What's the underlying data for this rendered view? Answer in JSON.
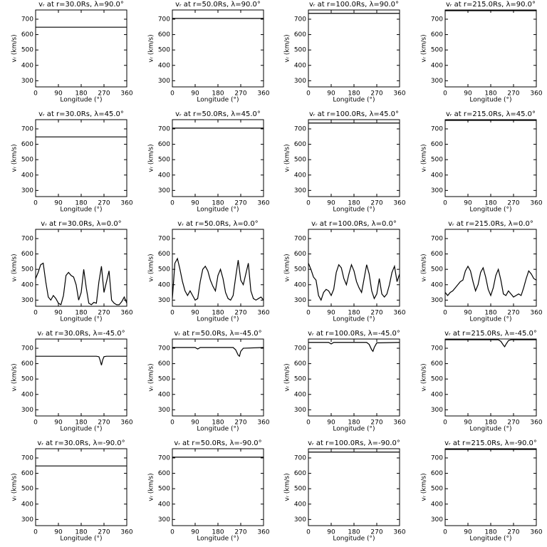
{
  "chart_data": [
    {
      "type": "line",
      "title": "vᵣ at r=30.0Rs, λ=90.0°",
      "xlabel": "Longitude (°)",
      "ylabel": "vᵣ (km/s)",
      "xlim": [
        0,
        360
      ],
      "ylim": [
        260,
        760
      ],
      "xticks": [
        0,
        90,
        180,
        270,
        360
      ],
      "yticks": [
        300,
        400,
        500,
        600,
        700
      ],
      "color": "#000000",
      "x": [
        0,
        360
      ],
      "values": [
        648,
        648
      ]
    },
    {
      "type": "line",
      "title": "vᵣ at r=50.0Rs, λ=90.0°",
      "xlabel": "Longitude (°)",
      "ylabel": "vᵣ (km/s)",
      "xlim": [
        0,
        360
      ],
      "ylim": [
        260,
        760
      ],
      "xticks": [
        0,
        90,
        180,
        270,
        360
      ],
      "yticks": [
        300,
        400,
        500,
        600,
        700
      ],
      "color": "#000000",
      "x": [
        0,
        360
      ],
      "values": [
        705,
        705
      ]
    },
    {
      "type": "line",
      "title": "vᵣ at r=100.0Rs, λ=90.0°",
      "xlabel": "Longitude (°)",
      "ylabel": "vᵣ (km/s)",
      "xlim": [
        0,
        360
      ],
      "ylim": [
        260,
        760
      ],
      "xticks": [
        0,
        90,
        180,
        270,
        360
      ],
      "yticks": [
        300,
        400,
        500,
        600,
        700
      ],
      "color": "#000000",
      "x": [
        0,
        360
      ],
      "values": [
        738,
        738
      ]
    },
    {
      "type": "line",
      "title": "vᵣ at r=215.0Rs, λ=90.0°",
      "xlabel": "Longitude (°)",
      "ylabel": "vᵣ (km/s)",
      "xlim": [
        0,
        360
      ],
      "ylim": [
        260,
        760
      ],
      "xticks": [
        0,
        90,
        180,
        270,
        360
      ],
      "yticks": [
        300,
        400,
        500,
        600,
        700
      ],
      "color": "#000000",
      "x": [
        0,
        360
      ],
      "values": [
        755,
        755
      ]
    },
    {
      "type": "line",
      "title": "vᵣ at r=30.0Rs, λ=45.0°",
      "xlabel": "Longitude (°)",
      "ylabel": "vᵣ (km/s)",
      "xlim": [
        0,
        360
      ],
      "ylim": [
        260,
        760
      ],
      "xticks": [
        0,
        90,
        180,
        270,
        360
      ],
      "yticks": [
        300,
        400,
        500,
        600,
        700
      ],
      "color": "#000000",
      "x": [
        0,
        360
      ],
      "values": [
        648,
        648
      ]
    },
    {
      "type": "line",
      "title": "vᵣ at r=50.0Rs, λ=45.0°",
      "xlabel": "Longitude (°)",
      "ylabel": "vᵣ (km/s)",
      "xlim": [
        0,
        360
      ],
      "ylim": [
        260,
        760
      ],
      "xticks": [
        0,
        90,
        180,
        270,
        360
      ],
      "yticks": [
        300,
        400,
        500,
        600,
        700
      ],
      "color": "#000000",
      "x": [
        0,
        360
      ],
      "values": [
        705,
        705
      ]
    },
    {
      "type": "line",
      "title": "vᵣ at r=100.0Rs, λ=45.0°",
      "xlabel": "Longitude (°)",
      "ylabel": "vᵣ (km/s)",
      "xlim": [
        0,
        360
      ],
      "ylim": [
        260,
        760
      ],
      "xticks": [
        0,
        90,
        180,
        270,
        360
      ],
      "yticks": [
        300,
        400,
        500,
        600,
        700
      ],
      "color": "#000000",
      "x": [
        0,
        360
      ],
      "values": [
        738,
        738
      ]
    },
    {
      "type": "line",
      "title": "vᵣ at r=215.0Rs, λ=45.0°",
      "xlabel": "Longitude (°)",
      "ylabel": "vᵣ (km/s)",
      "xlim": [
        0,
        360
      ],
      "ylim": [
        260,
        760
      ],
      "xticks": [
        0,
        90,
        180,
        270,
        360
      ],
      "yticks": [
        300,
        400,
        500,
        600,
        700
      ],
      "color": "#000000",
      "x": [
        0,
        360
      ],
      "values": [
        755,
        755
      ]
    },
    {
      "type": "line",
      "title": "vᵣ at r=30.0Rs, λ=0.0°",
      "xlabel": "Longitude (°)",
      "ylabel": "vᵣ (km/s)",
      "xlim": [
        0,
        360
      ],
      "ylim": [
        260,
        760
      ],
      "xticks": [
        0,
        90,
        180,
        270,
        360
      ],
      "yticks": [
        300,
        400,
        500,
        600,
        700
      ],
      "color": "#000000",
      "x": [
        0,
        10,
        20,
        30,
        40,
        50,
        60,
        70,
        80,
        90,
        100,
        110,
        120,
        130,
        140,
        150,
        160,
        170,
        180,
        190,
        200,
        210,
        220,
        230,
        240,
        250,
        260,
        270,
        280,
        290,
        300,
        310,
        320,
        330,
        340,
        350,
        360
      ],
      "values": [
        440,
        480,
        530,
        540,
        420,
        320,
        300,
        330,
        310,
        280,
        270,
        330,
        460,
        480,
        460,
        450,
        400,
        300,
        350,
        500,
        380,
        280,
        270,
        285,
        280,
        420,
        520,
        350,
        420,
        490,
        300,
        280,
        270,
        270,
        290,
        320,
        280
      ]
    },
    {
      "type": "line",
      "title": "vᵣ at r=50.0Rs, λ=0.0°",
      "xlabel": "Longitude (°)",
      "ylabel": "vᵣ (km/s)",
      "xlim": [
        0,
        360
      ],
      "ylim": [
        260,
        760
      ],
      "xticks": [
        0,
        90,
        180,
        270,
        360
      ],
      "yticks": [
        300,
        400,
        500,
        600,
        700
      ],
      "color": "#000000",
      "x": [
        0,
        10,
        20,
        30,
        40,
        50,
        60,
        70,
        80,
        90,
        100,
        110,
        120,
        130,
        140,
        150,
        160,
        170,
        180,
        190,
        200,
        210,
        220,
        230,
        240,
        250,
        260,
        270,
        280,
        290,
        300,
        310,
        320,
        330,
        340,
        350,
        360
      ],
      "values": [
        310,
        540,
        570,
        500,
        420,
        360,
        330,
        360,
        330,
        300,
        310,
        420,
        500,
        520,
        490,
        430,
        390,
        360,
        460,
        500,
        440,
        350,
        310,
        300,
        330,
        450,
        560,
        430,
        400,
        470,
        540,
        360,
        310,
        300,
        310,
        320,
        300
      ]
    },
    {
      "type": "line",
      "title": "vᵣ at r=100.0Rs, λ=0.0°",
      "xlabel": "Longitude (°)",
      "ylabel": "vᵣ (km/s)",
      "xlim": [
        0,
        360
      ],
      "ylim": [
        260,
        760
      ],
      "xticks": [
        0,
        90,
        180,
        270,
        360
      ],
      "yticks": [
        300,
        400,
        500,
        600,
        700
      ],
      "color": "#000000",
      "x": [
        0,
        10,
        20,
        30,
        40,
        50,
        60,
        70,
        80,
        90,
        100,
        110,
        120,
        130,
        140,
        150,
        160,
        170,
        180,
        190,
        200,
        210,
        220,
        230,
        240,
        250,
        260,
        270,
        280,
        290,
        300,
        310,
        320,
        330,
        340,
        350,
        360
      ],
      "values": [
        540,
        500,
        450,
        430,
        330,
        300,
        350,
        370,
        360,
        330,
        370,
        480,
        530,
        510,
        440,
        400,
        470,
        530,
        490,
        420,
        380,
        350,
        440,
        530,
        470,
        360,
        310,
        340,
        440,
        340,
        320,
        340,
        400,
        480,
        520,
        420,
        470
      ]
    },
    {
      "type": "line",
      "title": "vᵣ at r=215.0Rs, λ=0.0°",
      "xlabel": "Longitude (°)",
      "ylabel": "vᵣ (km/s)",
      "xlim": [
        0,
        360
      ],
      "ylim": [
        260,
        760
      ],
      "xticks": [
        0,
        90,
        180,
        270,
        360
      ],
      "yticks": [
        300,
        400,
        500,
        600,
        700
      ],
      "color": "#000000",
      "x": [
        0,
        10,
        20,
        30,
        40,
        50,
        60,
        70,
        80,
        90,
        100,
        110,
        120,
        130,
        140,
        150,
        160,
        170,
        180,
        190,
        200,
        210,
        220,
        230,
        240,
        250,
        260,
        270,
        280,
        290,
        300,
        310,
        320,
        330,
        340,
        350,
        360
      ],
      "values": [
        350,
        330,
        350,
        360,
        380,
        400,
        420,
        430,
        490,
        520,
        490,
        420,
        360,
        400,
        480,
        510,
        450,
        370,
        330,
        380,
        460,
        500,
        430,
        340,
        330,
        360,
        340,
        320,
        330,
        340,
        330,
        380,
        440,
        490,
        470,
        440,
        430
      ]
    },
    {
      "type": "line",
      "title": "vᵣ at r=30.0Rs, λ=-45.0°",
      "xlabel": "Longitude (°)",
      "ylabel": "vᵣ (km/s)",
      "xlim": [
        0,
        360
      ],
      "ylim": [
        260,
        760
      ],
      "xticks": [
        0,
        90,
        180,
        270,
        360
      ],
      "yticks": [
        300,
        400,
        500,
        600,
        700
      ],
      "color": "#000000",
      "x": [
        0,
        240,
        250,
        255,
        260,
        265,
        270,
        280,
        360
      ],
      "values": [
        648,
        648,
        645,
        620,
        590,
        625,
        645,
        648,
        648
      ]
    },
    {
      "type": "line",
      "title": "vᵣ at r=50.0Rs, λ=-45.0°",
      "xlabel": "Longitude (°)",
      "ylabel": "vᵣ (km/s)",
      "xlim": [
        0,
        360
      ],
      "ylim": [
        260,
        760
      ],
      "xticks": [
        0,
        90,
        180,
        270,
        360
      ],
      "yticks": [
        300,
        400,
        500,
        600,
        700
      ],
      "color": "#000000",
      "x": [
        0,
        90,
        100,
        110,
        240,
        250,
        260,
        265,
        270,
        280,
        360
      ],
      "values": [
        705,
        705,
        695,
        705,
        705,
        690,
        655,
        648,
        680,
        700,
        705
      ]
    },
    {
      "type": "line",
      "title": "vᵣ at r=100.0Rs, λ=-45.0°",
      "xlabel": "Longitude (°)",
      "ylabel": "vᵣ (km/s)",
      "xlim": [
        0,
        360
      ],
      "ylim": [
        260,
        760
      ],
      "xticks": [
        0,
        90,
        180,
        270,
        360
      ],
      "yticks": [
        300,
        400,
        500,
        600,
        700
      ],
      "color": "#000000",
      "x": [
        0,
        80,
        90,
        100,
        230,
        240,
        250,
        255,
        260,
        270,
        360
      ],
      "values": [
        738,
        738,
        728,
        738,
        738,
        725,
        690,
        680,
        705,
        735,
        738
      ]
    },
    {
      "type": "line",
      "title": "vᵣ at r=215.0Rs, λ=-45.0°",
      "xlabel": "Longitude (°)",
      "ylabel": "vᵣ (km/s)",
      "xlim": [
        0,
        360
      ],
      "ylim": [
        260,
        760
      ],
      "xticks": [
        0,
        90,
        180,
        270,
        360
      ],
      "yticks": [
        300,
        400,
        500,
        600,
        700
      ],
      "color": "#000000",
      "x": [
        0,
        210,
        220,
        230,
        235,
        240,
        250,
        260,
        360
      ],
      "values": [
        755,
        755,
        745,
        720,
        710,
        725,
        750,
        755,
        755
      ]
    },
    {
      "type": "line",
      "title": "vᵣ at r=30.0Rs, λ=-90.0°",
      "xlabel": "Longitude (°)",
      "ylabel": "vᵣ (km/s)",
      "xlim": [
        0,
        360
      ],
      "ylim": [
        260,
        760
      ],
      "xticks": [
        0,
        90,
        180,
        270,
        360
      ],
      "yticks": [
        300,
        400,
        500,
        600,
        700
      ],
      "color": "#000000",
      "x": [
        0,
        360
      ],
      "values": [
        648,
        648
      ]
    },
    {
      "type": "line",
      "title": "vᵣ at r=50.0Rs, λ=-90.0°",
      "xlabel": "Longitude (°)",
      "ylabel": "vᵣ (km/s)",
      "xlim": [
        0,
        360
      ],
      "ylim": [
        260,
        760
      ],
      "xticks": [
        0,
        90,
        180,
        270,
        360
      ],
      "yticks": [
        300,
        400,
        500,
        600,
        700
      ],
      "color": "#000000",
      "x": [
        0,
        360
      ],
      "values": [
        705,
        705
      ]
    },
    {
      "type": "line",
      "title": "vᵣ at r=100.0Rs, λ=-90.0°",
      "xlabel": "Longitude (°)",
      "ylabel": "vᵣ (km/s)",
      "xlim": [
        0,
        360
      ],
      "ylim": [
        260,
        760
      ],
      "xticks": [
        0,
        90,
        180,
        270,
        360
      ],
      "yticks": [
        300,
        400,
        500,
        600,
        700
      ],
      "color": "#000000",
      "x": [
        0,
        360
      ],
      "values": [
        738,
        738
      ]
    },
    {
      "type": "line",
      "title": "vᵣ at r=215.0Rs, λ=-90.0°",
      "xlabel": "Longitude (°)",
      "ylabel": "vᵣ (km/s)",
      "xlim": [
        0,
        360
      ],
      "ylim": [
        260,
        760
      ],
      "xticks": [
        0,
        90,
        180,
        270,
        360
      ],
      "yticks": [
        300,
        400,
        500,
        600,
        700
      ],
      "color": "#000000",
      "x": [
        0,
        360
      ],
      "values": [
        755,
        755
      ]
    }
  ]
}
